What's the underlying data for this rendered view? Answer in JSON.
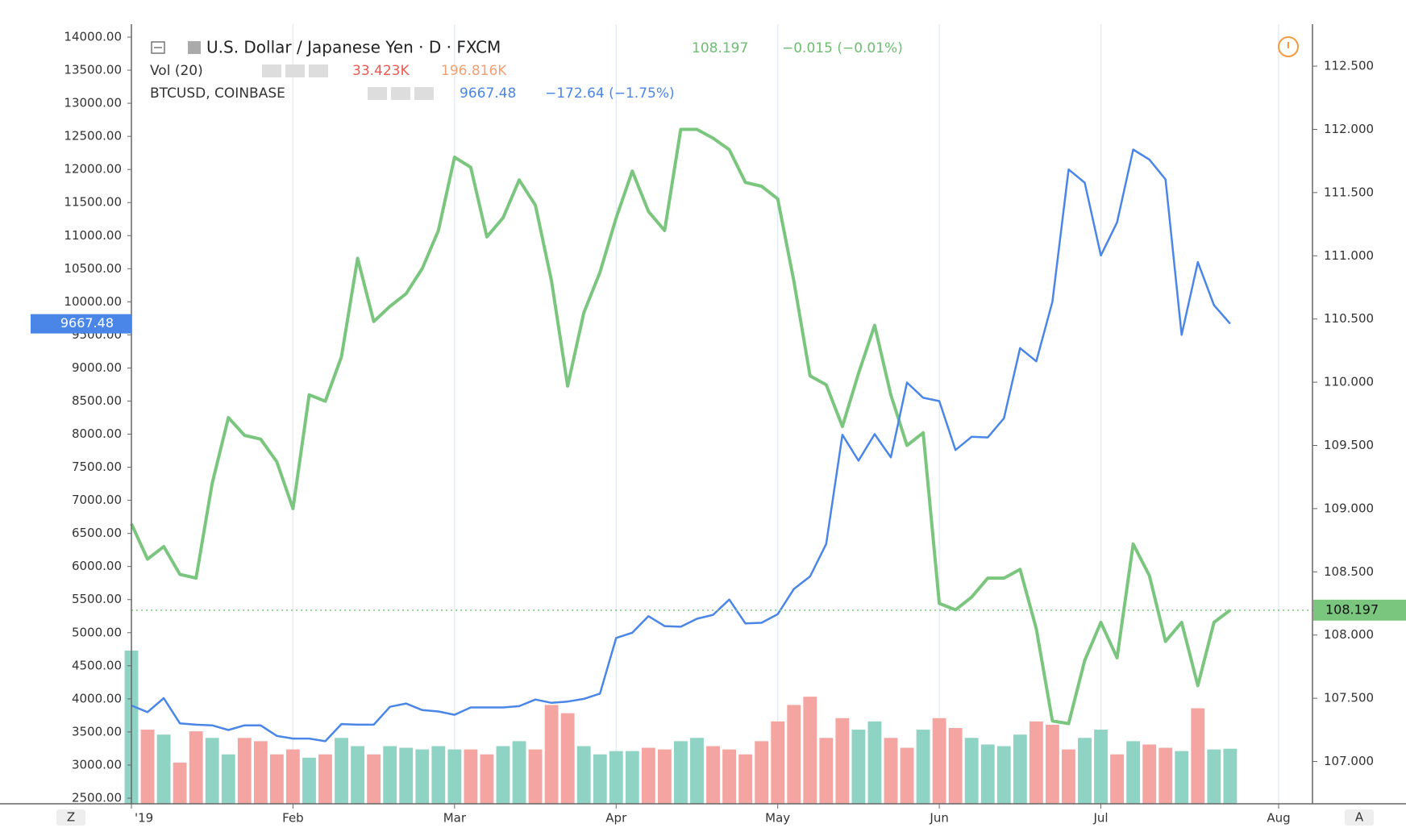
{
  "chart_data": {
    "type": "line",
    "categories": [
      "'19",
      null,
      null,
      null,
      null,
      null,
      null,
      null,
      null,
      null,
      "Feb",
      null,
      null,
      null,
      null,
      null,
      null,
      null,
      null,
      null,
      "Mar",
      null,
      null,
      null,
      null,
      null,
      null,
      null,
      null,
      null,
      "Apr",
      null,
      null,
      null,
      null,
      null,
      null,
      null,
      null,
      null,
      "May",
      null,
      null,
      null,
      null,
      null,
      null,
      null,
      null,
      null,
      "Jun",
      null,
      null,
      null,
      null,
      null,
      null,
      null,
      null,
      null,
      "Jul",
      null,
      null,
      null,
      null,
      null,
      null,
      null,
      null,
      null,
      null,
      "Aug"
    ],
    "series": [
      {
        "name": "U.S. Dollar / Japanese Yen · D · FXCM",
        "color": "#7bc67e",
        "axis": "y2",
        "change": "−0.015 (−0.01%)",
        "values": [
          108.88,
          108.6,
          108.7,
          108.48,
          108.45,
          109.2,
          109.72,
          109.58,
          109.55,
          109.37,
          109.0,
          109.9,
          109.85,
          110.2,
          110.98,
          110.48,
          110.6,
          110.7,
          110.9,
          111.2,
          111.78,
          111.7,
          111.15,
          111.3,
          111.6,
          111.4,
          110.8,
          109.97,
          110.55,
          110.87,
          111.3,
          111.67,
          111.35,
          111.2,
          112.0,
          112.0,
          111.93,
          111.84,
          111.58,
          111.55,
          111.45,
          110.8,
          110.05,
          109.98,
          109.65,
          110.07,
          110.45,
          109.9,
          109.5,
          109.6,
          108.25,
          108.2,
          108.3,
          108.45,
          108.45,
          108.52,
          108.05,
          107.32,
          107.3,
          107.8,
          108.1,
          107.82,
          108.72,
          108.47,
          107.95,
          108.1,
          107.6,
          108.1,
          108.197,
          null,
          null,
          null
        ]
      },
      {
        "name": "Vol (20)",
        "type": "bar",
        "up_color": "#8fd3c4",
        "down_color": "#f4a5a1",
        "readouts": [
          "33.423K",
          "196.816K"
        ],
        "values": [
          93,
          45,
          42,
          25,
          44,
          40,
          30,
          40,
          38,
          30,
          33,
          28,
          30,
          40,
          35,
          30,
          35,
          34,
          33,
          35,
          33,
          33,
          30,
          35,
          38,
          33,
          60,
          55,
          35,
          30,
          32,
          32,
          34,
          33,
          38,
          40,
          35,
          33,
          30,
          38,
          50,
          60,
          65,
          40,
          52,
          45,
          50,
          40,
          34,
          45,
          52,
          46,
          40,
          36,
          35,
          42,
          50,
          48,
          33,
          40,
          45,
          30,
          38,
          36,
          34,
          32,
          58,
          33,
          33.423,
          null,
          null,
          null
        ]
      },
      {
        "name": "BTCUSD, COINBASE",
        "color": "#4a86e8",
        "change": "−172.64 (−1.75%)",
        "values": [
          3900,
          3800,
          4010,
          3630,
          3610,
          3600,
          3530,
          3600,
          3600,
          3440,
          3400,
          3400,
          3360,
          3620,
          3610,
          3610,
          3880,
          3930,
          3830,
          3810,
          3760,
          3870,
          3870,
          3870,
          3890,
          3990,
          3940,
          3960,
          4000,
          4080,
          4920,
          5000,
          5250,
          5100,
          5090,
          5210,
          5270,
          5500,
          5140,
          5150,
          5280,
          5660,
          5850,
          6340,
          7990,
          7600,
          8000,
          7650,
          8780,
          8550,
          8500,
          7760,
          7960,
          7950,
          8240,
          9300,
          9100,
          10000,
          12000,
          11800,
          10700,
          11200,
          12300,
          12150,
          11850,
          9500,
          10600,
          9950,
          9667.48,
          null,
          null,
          null
        ]
      }
    ],
    "ylim": [
      2500,
      14000
    ],
    "yticks": [
      {
        "value": 2500,
        "label": "2500.00"
      },
      {
        "value": 3000,
        "label": "3000.00"
      },
      {
        "value": 3500,
        "label": "3500.00"
      },
      {
        "value": 4000,
        "label": "4000.00"
      },
      {
        "value": 4500,
        "label": "4500.00"
      },
      {
        "value": 5000,
        "label": "5000.00"
      },
      {
        "value": 5500,
        "label": "5500.00"
      },
      {
        "value": 6000,
        "label": "6000.00"
      },
      {
        "value": 6500,
        "label": "6500.00"
      },
      {
        "value": 7000,
        "label": "7000.00"
      },
      {
        "value": 7500,
        "label": "7500.00"
      },
      {
        "value": 8000,
        "label": "8000.00"
      },
      {
        "value": 8500,
        "label": "8500.00"
      },
      {
        "value": 9000,
        "label": "9000.00"
      },
      {
        "value": 9500,
        "label": "9500.00"
      },
      {
        "value": 10000,
        "label": "10000.00"
      },
      {
        "value": 10500,
        "label": "10500.00"
      },
      {
        "value": 11000,
        "label": "11000.00"
      },
      {
        "value": 11500,
        "label": "11500.00"
      },
      {
        "value": 12000,
        "label": "12000.00"
      },
      {
        "value": 12500,
        "label": "12500.00"
      },
      {
        "value": 13000,
        "label": "13000.00"
      },
      {
        "value": 13500,
        "label": "13500.00"
      },
      {
        "value": 14000,
        "label": "14000.00"
      }
    ],
    "y2lim": [
      106.71,
      112.73
    ],
    "y2ticks": [
      {
        "value": 107,
        "label": "107.000"
      },
      {
        "value": 107.5,
        "label": "107.500"
      },
      {
        "value": 108,
        "label": "108.000"
      },
      {
        "value": 108.5,
        "label": "108.500"
      },
      {
        "value": 109,
        "label": "109.000"
      },
      {
        "value": 109.5,
        "label": "109.500"
      },
      {
        "value": 110,
        "label": "110.000"
      },
      {
        "value": 110.5,
        "label": "110.500"
      },
      {
        "value": 111,
        "label": "111.000"
      },
      {
        "value": 111.5,
        "label": "111.500"
      },
      {
        "value": 112,
        "label": "112.000"
      },
      {
        "value": 112.5,
        "label": "112.500"
      }
    ],
    "grid": "x",
    "buttons": [
      "Z",
      "A"
    ]
  }
}
